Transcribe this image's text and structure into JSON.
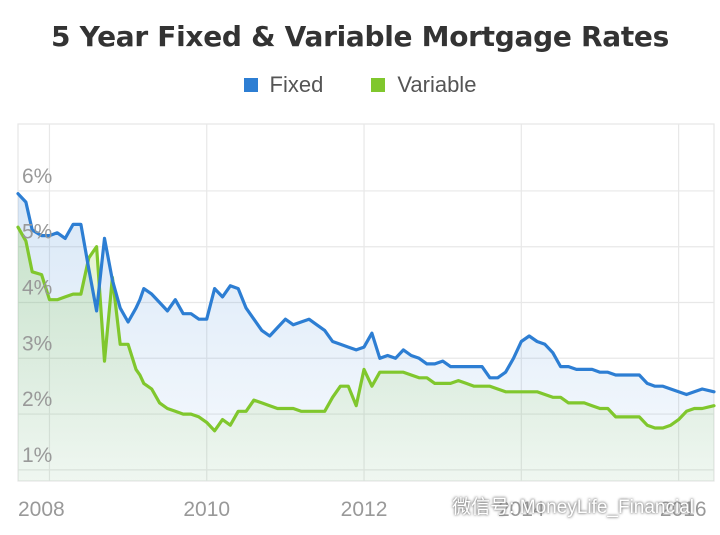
{
  "chart_data": {
    "type": "area",
    "title": "5 Year Fixed & Variable Mortgage Rates",
    "xlabel": "",
    "ylabel": "",
    "xlim": [
      2007.6,
      2016.45
    ],
    "ylim": [
      0.8,
      7.2
    ],
    "x_ticks": [
      "2008",
      "2010",
      "2012",
      "2014",
      "2016"
    ],
    "y_ticks": [
      "1%",
      "2%",
      "3%",
      "4%",
      "5%",
      "6%"
    ],
    "grid": true,
    "legend": "top-center",
    "series": [
      {
        "name": "Fixed",
        "color": "#2d7ed3",
        "x": [
          2007.6,
          2007.7,
          2007.78,
          2007.9,
          2008.0,
          2008.1,
          2008.2,
          2008.3,
          2008.4,
          2008.5,
          2008.6,
          2008.7,
          2008.8,
          2008.9,
          2009.0,
          2009.1,
          2009.15,
          2009.2,
          2009.3,
          2009.4,
          2009.5,
          2009.6,
          2009.7,
          2009.8,
          2009.9,
          2010.0,
          2010.1,
          2010.2,
          2010.3,
          2010.4,
          2010.5,
          2010.6,
          2010.7,
          2010.8,
          2010.9,
          2011.0,
          2011.1,
          2011.2,
          2011.3,
          2011.4,
          2011.5,
          2011.6,
          2011.7,
          2011.8,
          2011.9,
          2012.0,
          2012.1,
          2012.2,
          2012.3,
          2012.4,
          2012.5,
          2012.6,
          2012.7,
          2012.8,
          2012.9,
          2013.0,
          2013.1,
          2013.2,
          2013.3,
          2013.4,
          2013.5,
          2013.6,
          2013.7,
          2013.8,
          2013.9,
          2014.0,
          2014.1,
          2014.2,
          2014.3,
          2014.4,
          2014.5,
          2014.6,
          2014.7,
          2014.8,
          2014.9,
          2015.0,
          2015.1,
          2015.2,
          2015.3,
          2015.4,
          2015.5,
          2015.6,
          2015.7,
          2015.8,
          2015.9,
          2016.0,
          2016.1,
          2016.2,
          2016.3,
          2016.45
        ],
        "values": [
          5.95,
          5.8,
          5.3,
          5.2,
          5.2,
          5.25,
          5.15,
          5.4,
          5.4,
          4.6,
          3.85,
          5.15,
          4.4,
          3.9,
          3.65,
          3.9,
          4.05,
          4.25,
          4.15,
          4.0,
          3.85,
          4.05,
          3.8,
          3.8,
          3.7,
          3.7,
          4.25,
          4.1,
          4.3,
          4.25,
          3.9,
          3.7,
          3.5,
          3.4,
          3.55,
          3.7,
          3.6,
          3.65,
          3.7,
          3.6,
          3.5,
          3.3,
          3.25,
          3.2,
          3.15,
          3.2,
          3.45,
          3.0,
          3.05,
          3.0,
          3.15,
          3.05,
          3.0,
          2.9,
          2.9,
          2.95,
          2.85,
          2.85,
          2.85,
          2.85,
          2.85,
          2.65,
          2.65,
          2.75,
          3.0,
          3.3,
          3.4,
          3.3,
          3.25,
          3.1,
          2.85,
          2.85,
          2.8,
          2.8,
          2.8,
          2.75,
          2.75,
          2.7,
          2.7,
          2.7,
          2.7,
          2.55,
          2.5,
          2.5,
          2.45,
          2.4,
          2.35,
          2.4,
          2.45,
          2.4
        ]
      },
      {
        "name": "Variable",
        "color": "#80c72d",
        "x": [
          2007.6,
          2007.7,
          2007.78,
          2007.9,
          2008.0,
          2008.1,
          2008.2,
          2008.3,
          2008.4,
          2008.5,
          2008.6,
          2008.7,
          2008.8,
          2008.9,
          2009.0,
          2009.1,
          2009.15,
          2009.2,
          2009.3,
          2009.4,
          2009.5,
          2009.6,
          2009.7,
          2009.8,
          2009.9,
          2010.0,
          2010.1,
          2010.2,
          2010.3,
          2010.4,
          2010.5,
          2010.6,
          2010.7,
          2010.8,
          2010.9,
          2011.0,
          2011.1,
          2011.2,
          2011.3,
          2011.4,
          2011.5,
          2011.6,
          2011.7,
          2011.8,
          2011.9,
          2012.0,
          2012.1,
          2012.2,
          2012.3,
          2012.4,
          2012.5,
          2012.6,
          2012.7,
          2012.8,
          2012.9,
          2013.0,
          2013.1,
          2013.2,
          2013.3,
          2013.4,
          2013.5,
          2013.6,
          2013.7,
          2013.8,
          2013.9,
          2014.0,
          2014.1,
          2014.2,
          2014.3,
          2014.4,
          2014.5,
          2014.6,
          2014.7,
          2014.8,
          2014.9,
          2015.0,
          2015.1,
          2015.2,
          2015.3,
          2015.4,
          2015.5,
          2015.6,
          2015.7,
          2015.8,
          2015.9,
          2016.0,
          2016.1,
          2016.2,
          2016.3,
          2016.45
        ],
        "values": [
          5.35,
          5.1,
          4.55,
          4.5,
          4.05,
          4.05,
          4.1,
          4.15,
          4.15,
          4.8,
          5.0,
          2.95,
          4.45,
          3.25,
          3.25,
          2.8,
          2.7,
          2.55,
          2.45,
          2.2,
          2.1,
          2.05,
          2.0,
          2.0,
          1.95,
          1.85,
          1.7,
          1.9,
          1.8,
          2.05,
          2.05,
          2.25,
          2.2,
          2.15,
          2.1,
          2.1,
          2.1,
          2.05,
          2.05,
          2.05,
          2.05,
          2.3,
          2.5,
          2.5,
          2.15,
          2.8,
          2.5,
          2.75,
          2.75,
          2.75,
          2.75,
          2.7,
          2.65,
          2.65,
          2.55,
          2.55,
          2.55,
          2.6,
          2.55,
          2.5,
          2.5,
          2.5,
          2.45,
          2.4,
          2.4,
          2.4,
          2.4,
          2.4,
          2.35,
          2.3,
          2.3,
          2.2,
          2.2,
          2.2,
          2.15,
          2.1,
          2.1,
          1.95,
          1.95,
          1.95,
          1.95,
          1.8,
          1.75,
          1.75,
          1.8,
          1.9,
          2.05,
          2.1,
          2.1,
          2.15
        ]
      }
    ]
  },
  "watermark": {
    "text": "微信号: MoneyLife_Financial",
    "icon": "wechat-icon"
  }
}
